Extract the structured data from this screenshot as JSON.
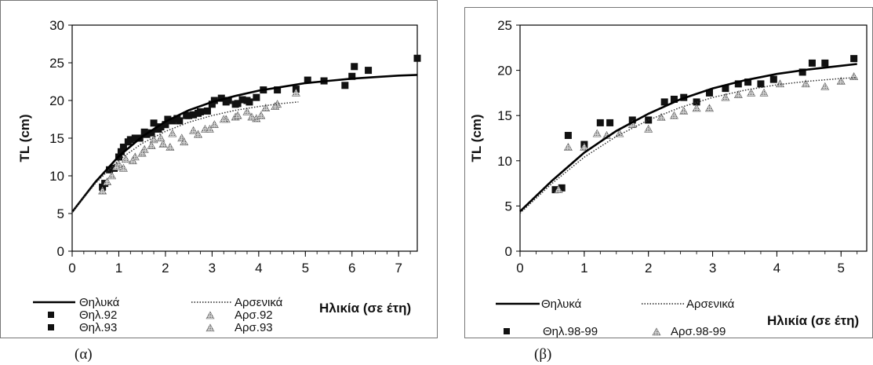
{
  "chart_data": [
    {
      "type": "scatter",
      "panel_label": "(α)",
      "xlabel": "Ηλικία (σε έτη)",
      "ylabel": "TL (cm)",
      "xlim": [
        0,
        7.4
      ],
      "ylim": [
        0,
        30
      ],
      "xticks": [
        "0",
        "1",
        "2",
        "3",
        "4",
        "5",
        "6",
        "7"
      ],
      "yticks": [
        "0",
        "5",
        "10",
        "15",
        "20",
        "25",
        "30"
      ],
      "grid": false,
      "legend_position": "bottom",
      "legend_lines": {
        "female": "Θηλυκά",
        "male": "Αρσενικά"
      },
      "series": [
        {
          "name": "Θηλυκά",
          "kind": "line",
          "style": "solid",
          "x": [
            0,
            0.5,
            1,
            1.5,
            2,
            2.5,
            3,
            3.5,
            4,
            4.5,
            5,
            5.5,
            6,
            6.5,
            7,
            7.4
          ],
          "y": [
            5.2,
            9.2,
            12.6,
            15.2,
            17.2,
            18.7,
            19.8,
            20.6,
            21.3,
            21.8,
            22.3,
            22.6,
            22.9,
            23.1,
            23.3,
            23.4
          ]
        },
        {
          "name": "Αρσενικά",
          "kind": "line",
          "style": "dotted",
          "x": [
            0,
            0.5,
            1,
            1.5,
            2,
            2.5,
            3,
            3.5,
            4,
            4.5,
            4.85
          ],
          "y": [
            5.2,
            9.0,
            12.1,
            14.3,
            15.9,
            17.1,
            18.0,
            18.7,
            19.2,
            19.6,
            19.8
          ]
        },
        {
          "name": "Θηλ.92",
          "kind": "square",
          "x": [
            0.65,
            0.8,
            1.0,
            1.1,
            1.25,
            1.45,
            1.6,
            1.75,
            1.85,
            2.0,
            2.15,
            2.3,
            2.45,
            2.6,
            2.75,
            2.9,
            3.05,
            3.2,
            3.35,
            3.5,
            3.65,
            3.8,
            3.95,
            4.1,
            4.4,
            4.8,
            5.05,
            5.4,
            5.85,
            6.0,
            6.35,
            7.4
          ],
          "y": [
            8.5,
            10.8,
            12.5,
            13.8,
            14.8,
            15.0,
            15.5,
            17.0,
            16.2,
            16.8,
            17.3,
            17.3,
            18.0,
            18.1,
            18.5,
            18.6,
            20.0,
            20.3,
            20.0,
            19.5,
            20.1,
            19.8,
            20.4,
            21.4,
            21.4,
            21.5,
            22.7,
            22.6,
            22.0,
            23.2,
            24.0,
            25.6
          ]
        },
        {
          "name": "Θηλ.93",
          "kind": "square",
          "x": [
            0.7,
            0.9,
            1.05,
            1.2,
            1.35,
            1.55,
            1.7,
            1.9,
            2.05,
            2.25,
            2.5,
            2.7,
            3.0,
            3.3,
            3.55,
            3.75,
            6.05
          ],
          "y": [
            9.0,
            11.0,
            13.2,
            14.5,
            15.0,
            15.8,
            15.7,
            16.5,
            17.5,
            17.6,
            18.0,
            18.3,
            19.5,
            19.8,
            19.6,
            20.0,
            24.5
          ]
        },
        {
          "name": "Αρσ.92",
          "kind": "triangle",
          "x": [
            0.65,
            0.85,
            1.0,
            1.15,
            1.35,
            1.55,
            1.75,
            1.95,
            2.15,
            2.35,
            2.6,
            2.85,
            3.05,
            3.3,
            3.5,
            3.75,
            3.95,
            4.15,
            4.4,
            4.8
          ],
          "y": [
            8.0,
            10.0,
            11.5,
            12.2,
            12.5,
            13.5,
            14.8,
            14.2,
            15.6,
            15.0,
            16.0,
            16.2,
            16.8,
            17.5,
            17.8,
            18.5,
            17.6,
            19.0,
            19.5,
            21.0
          ]
        },
        {
          "name": "Αρσ.93",
          "kind": "triangle",
          "x": [
            0.75,
            0.95,
            1.1,
            1.3,
            1.5,
            1.7,
            1.9,
            2.1,
            2.4,
            2.7,
            2.95,
            3.25,
            3.55,
            3.85,
            4.05,
            4.35
          ],
          "y": [
            9.2,
            11.2,
            11.0,
            12.0,
            13.0,
            14.0,
            15.0,
            13.8,
            14.5,
            15.5,
            16.2,
            17.5,
            18.0,
            17.8,
            18.0,
            19.2
          ]
        }
      ]
    },
    {
      "type": "scatter",
      "panel_label": "(β)",
      "xlabel": "Ηλικία (σε έτη)",
      "ylabel": "TL (cm)",
      "xlim": [
        0,
        5.4
      ],
      "ylim": [
        0,
        25
      ],
      "xticks": [
        "0",
        "1",
        "2",
        "3",
        "4",
        "5"
      ],
      "yticks": [
        "0",
        "5",
        "10",
        "15",
        "20",
        "25"
      ],
      "grid": false,
      "legend_position": "bottom",
      "legend_lines": {
        "female": "Θηλυκά",
        "male": "Αρσενικά"
      },
      "series": [
        {
          "name": "Θηλυκά",
          "kind": "line",
          "style": "solid",
          "x": [
            0,
            0.5,
            1,
            1.5,
            2,
            2.5,
            3,
            3.5,
            4,
            4.5,
            5,
            5.25
          ],
          "y": [
            4.4,
            7.8,
            10.9,
            13.3,
            15.2,
            16.8,
            18.0,
            18.9,
            19.6,
            20.1,
            20.5,
            20.7
          ]
        },
        {
          "name": "Αρσενικά",
          "kind": "line",
          "style": "dotted",
          "x": [
            0,
            0.5,
            1,
            1.5,
            2,
            2.5,
            3,
            3.5,
            4,
            4.5,
            5,
            5.25
          ],
          "y": [
            4.2,
            7.5,
            10.4,
            12.7,
            14.5,
            15.9,
            17.0,
            17.8,
            18.4,
            18.8,
            19.1,
            19.2
          ]
        },
        {
          "name": "Θηλ.98-99",
          "kind": "square",
          "x": [
            0.55,
            0.65,
            0.75,
            1.0,
            1.25,
            1.4,
            1.75,
            2.0,
            2.25,
            2.4,
            2.55,
            2.75,
            2.95,
            3.2,
            3.4,
            3.55,
            3.75,
            3.95,
            4.4,
            4.55,
            4.75,
            5.2
          ],
          "y": [
            6.8,
            7.0,
            12.8,
            11.8,
            14.2,
            14.2,
            14.5,
            14.5,
            16.5,
            16.8,
            17.0,
            16.5,
            17.5,
            18.0,
            18.5,
            18.7,
            18.5,
            19.0,
            19.8,
            20.8,
            20.8,
            21.3
          ]
        },
        {
          "name": "Αρσ.98-99",
          "kind": "triangle",
          "x": [
            0.6,
            0.75,
            1.0,
            1.2,
            1.35,
            1.55,
            1.75,
            2.0,
            2.2,
            2.4,
            2.55,
            2.75,
            2.95,
            3.2,
            3.4,
            3.6,
            3.8,
            4.05,
            4.45,
            4.75,
            5.0,
            5.2
          ],
          "y": [
            6.8,
            11.5,
            11.5,
            13.0,
            12.8,
            13.0,
            14.0,
            13.5,
            14.8,
            15.0,
            15.5,
            15.8,
            15.8,
            17.0,
            17.3,
            17.5,
            17.5,
            18.5,
            18.5,
            18.2,
            18.8,
            19.3
          ]
        }
      ]
    }
  ]
}
